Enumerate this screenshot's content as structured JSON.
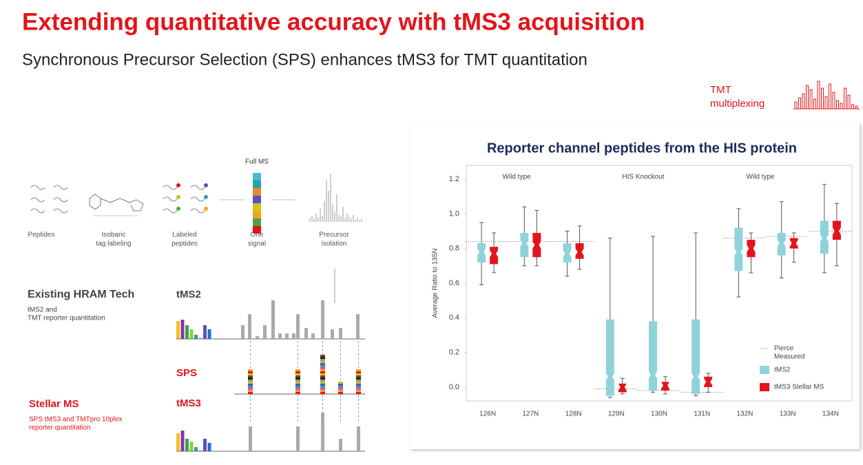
{
  "header": {
    "title": "Extending quantitative accuracy with tMS3 acquisition",
    "subtitle": "Synchronous Precursor Selection (SPS) enhances tMS3 for TMT quantitation",
    "badge": [
      "TMT",
      "multiplexing"
    ]
  },
  "workflow": {
    "full_ms": "Full MS",
    "steps": [
      [
        "Peptides"
      ],
      [
        "Isobaric",
        "tag labeling"
      ],
      [
        "Labeled",
        "peptides"
      ],
      [
        "One",
        "signal"
      ],
      [
        "Precursor",
        "isolation"
      ]
    ]
  },
  "existing": {
    "title": "Existing  HRAM  Tech",
    "desc": [
      "tMS2 and",
      "TMT  reporter quantitation"
    ],
    "scan": "tMS2"
  },
  "stellar": {
    "title": "Stellar MS",
    "desc": [
      "SPS tMS3 and TMTpro  10plex",
      "reporter quantitation"
    ],
    "sps": "SPS",
    "scan": "tMS3"
  },
  "chart_data": {
    "type": "box",
    "title": "Reporter channel peptides from the HIS protein",
    "ylabel": "Average Ratio to 135N",
    "categories": [
      "126N",
      "127N",
      "128N",
      "129N",
      "130N",
      "131N",
      "132N",
      "133N",
      "134N"
    ],
    "annotations": [
      "Wild type",
      "HIS  Knockout",
      "Wild type"
    ],
    "ylim": [
      -0.08,
      1.28
    ],
    "yticks": [
      {
        "value": 0,
        "label": "0.0"
      },
      0.2,
      0.4,
      0.6,
      0.8,
      {
        "value": 1,
        "label": "1.0"
      },
      1.2
    ],
    "reference": {
      "name": [
        "Pierce",
        "Measured"
      ],
      "values": [
        0.84,
        0.84,
        0.84,
        -0.01,
        -0.02,
        -0.03,
        0.86,
        0.87,
        0.9
      ]
    },
    "series": [
      {
        "name": "tMS2",
        "color": "#8fd3da",
        "low": [
          0.59,
          0.7,
          0.64,
          -0.06,
          -0.03,
          -0.05,
          0.52,
          0.63,
          0.66
        ],
        "q1": [
          0.72,
          0.75,
          0.72,
          -0.05,
          -0.02,
          -0.04,
          0.67,
          0.76,
          0.77
        ],
        "median": [
          0.78,
          0.83,
          0.77,
          0.06,
          0.07,
          0.06,
          0.78,
          0.83,
          0.86
        ],
        "q3": [
          0.83,
          0.89,
          0.83,
          0.39,
          0.38,
          0.39,
          0.92,
          0.89,
          0.96
        ],
        "high": [
          0.95,
          1.04,
          0.9,
          0.86,
          0.87,
          0.89,
          1.03,
          1.07,
          1.17
        ]
      },
      {
        "name": "tMS3 Stellar MS",
        "color": "#e3141b",
        "low": [
          0.66,
          0.7,
          0.68,
          -0.04,
          -0.04,
          -0.03,
          0.66,
          0.72,
          0.7
        ],
        "q1": [
          0.71,
          0.75,
          0.74,
          -0.03,
          -0.02,
          0.0,
          0.75,
          0.8,
          0.85
        ],
        "median": [
          0.77,
          0.82,
          0.78,
          0.0,
          0.01,
          0.03,
          0.8,
          0.83,
          0.9
        ],
        "q3": [
          0.81,
          0.89,
          0.83,
          0.02,
          0.03,
          0.06,
          0.85,
          0.86,
          0.96
        ],
        "high": [
          0.89,
          1.02,
          0.93,
          0.05,
          0.06,
          0.08,
          0.89,
          0.89,
          1.06
        ]
      }
    ]
  }
}
